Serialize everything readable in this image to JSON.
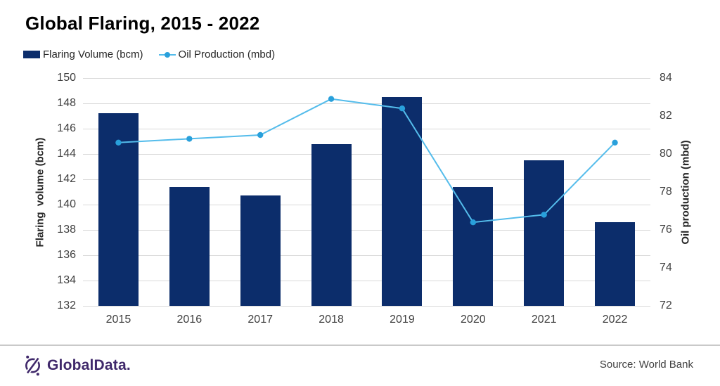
{
  "title": "Global Flaring, 2015 - 2022",
  "legend": [
    {
      "label": "Flaring Volume (bcm)",
      "swatch": "bar-swatch"
    },
    {
      "label": "Oil Production (mbd)",
      "swatch": "line-swatch"
    }
  ],
  "footer": {
    "brand": "GlobalData.",
    "source": "Source: World Bank"
  },
  "colors": {
    "bar": "#0C2D6B",
    "line": "#54BCEB",
    "marker": "#29A0DB",
    "grid": "#D9D9D9",
    "tick_text": "#404040",
    "brand_purple": "#40296B"
  },
  "chart_data": {
    "type": "bar",
    "subtype": "bar+line dual-axis",
    "title": "Global Flaring, 2015 - 2022",
    "categories": [
      "2015",
      "2016",
      "2017",
      "2018",
      "2019",
      "2020",
      "2021",
      "2022"
    ],
    "series": [
      {
        "name": "Flaring Volume (bcm)",
        "type": "bar",
        "axis": "left",
        "values": [
          147.2,
          141.4,
          140.7,
          144.8,
          148.5,
          141.4,
          143.5,
          138.6
        ]
      },
      {
        "name": "Oil Production (mbd)",
        "type": "line",
        "axis": "right",
        "values": [
          80.6,
          80.8,
          81.0,
          82.9,
          82.4,
          76.4,
          76.8,
          80.6
        ]
      }
    ],
    "left_axis": {
      "label": "Flaring  volume (bcm)",
      "min": 132,
      "max": 150,
      "step": 2
    },
    "right_axis": {
      "label": "Oil production (mbd)",
      "min": 72,
      "max": 84,
      "step": 2
    },
    "grid": "horizontal gridlines on",
    "legend_position": "top-left",
    "source": "Source: World Bank"
  }
}
